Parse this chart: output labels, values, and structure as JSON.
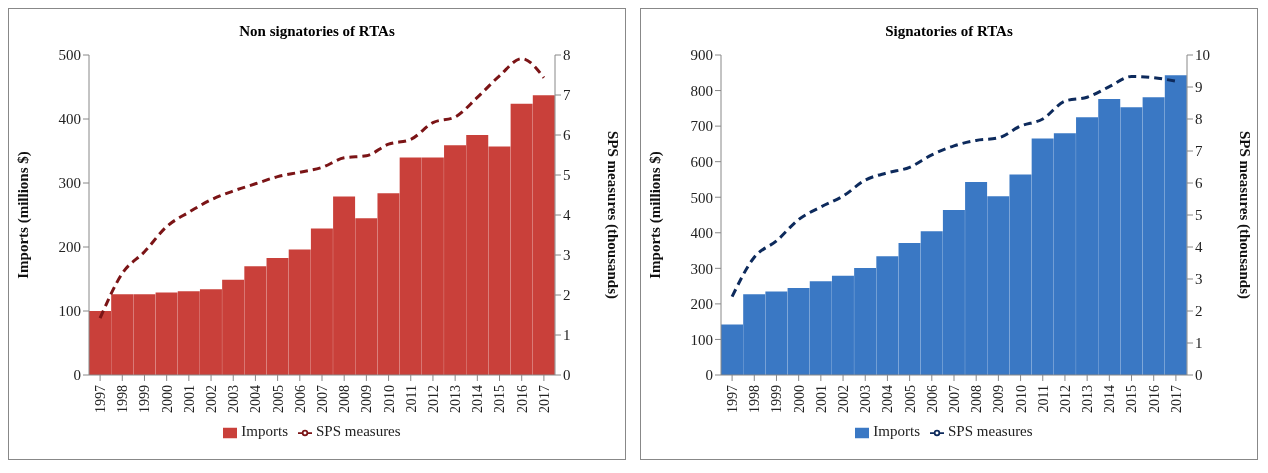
{
  "chart_data": [
    {
      "type": "bar",
      "title": "Non signatories of RTAs",
      "ylabel": "Imports (millions $)",
      "y2label": "SPS measures (thousands)",
      "categories": [
        "1997",
        "1998",
        "1999",
        "2000",
        "2001",
        "2002",
        "2003",
        "2004",
        "2005",
        "2006",
        "2007",
        "2008",
        "2009",
        "2010",
        "2011",
        "2012",
        "2013",
        "2014",
        "2015",
        "2016",
        "2017"
      ],
      "series": [
        {
          "name": "Imports",
          "color": "#c9403a",
          "values": [
            100,
            126,
            126,
            129,
            131,
            134,
            149,
            170,
            183,
            196,
            229,
            279,
            245,
            284,
            340,
            340,
            359,
            375,
            357,
            424,
            437
          ]
        },
        {
          "name": "SPS measures",
          "type": "line",
          "axis": "y2",
          "color": "#7b1416",
          "line_style": "dashed",
          "values": [
            1.42,
            2.54,
            3.08,
            3.71,
            4.07,
            4.38,
            4.6,
            4.78,
            4.96,
            5.07,
            5.19,
            5.43,
            5.48,
            5.77,
            5.89,
            6.31,
            6.45,
            6.94,
            7.48,
            7.91,
            7.43
          ]
        }
      ],
      "ylim": [
        0,
        500
      ],
      "yticks": [
        0,
        100,
        200,
        300,
        400,
        500
      ],
      "y2lim": [
        0,
        8
      ],
      "y2ticks": [
        0,
        1,
        2,
        3,
        4,
        5,
        6,
        7,
        8
      ],
      "legend": "bottom",
      "marker": "none"
    },
    {
      "type": "bar",
      "title": "Signatories of RTAs",
      "ylabel": "Imports (millions $)",
      "y2label": "SPS measures (thousands)",
      "categories": [
        "1997",
        "1998",
        "1999",
        "2000",
        "2001",
        "2002",
        "2003",
        "2004",
        "2005",
        "2006",
        "2007",
        "2008",
        "2009",
        "2010",
        "2011",
        "2012",
        "2013",
        "2014",
        "2015",
        "2016",
        "2017"
      ],
      "series": [
        {
          "name": "Imports",
          "color": "#3a78c4",
          "values": [
            142,
            227,
            235,
            245,
            264,
            279,
            301,
            334,
            371,
            404,
            464,
            543,
            503,
            564,
            665,
            680,
            725,
            776,
            753,
            781,
            843
          ]
        },
        {
          "name": "SPS measures",
          "type": "line",
          "axis": "y2",
          "color": "#0d2a5c",
          "line_style": "dashed",
          "values": [
            2.45,
            3.68,
            4.19,
            4.86,
            5.25,
            5.59,
            6.09,
            6.32,
            6.49,
            6.88,
            7.16,
            7.33,
            7.41,
            7.78,
            8.0,
            8.56,
            8.68,
            9.01,
            9.33,
            9.29,
            9.18
          ]
        }
      ],
      "ylim": [
        0,
        900
      ],
      "yticks": [
        0,
        100,
        200,
        300,
        400,
        500,
        600,
        700,
        800,
        900
      ],
      "y2lim": [
        0,
        10
      ],
      "y2ticks": [
        0,
        1,
        2,
        3,
        4,
        5,
        6,
        7,
        8,
        9,
        10
      ],
      "legend": "bottom",
      "marker": "none"
    }
  ]
}
